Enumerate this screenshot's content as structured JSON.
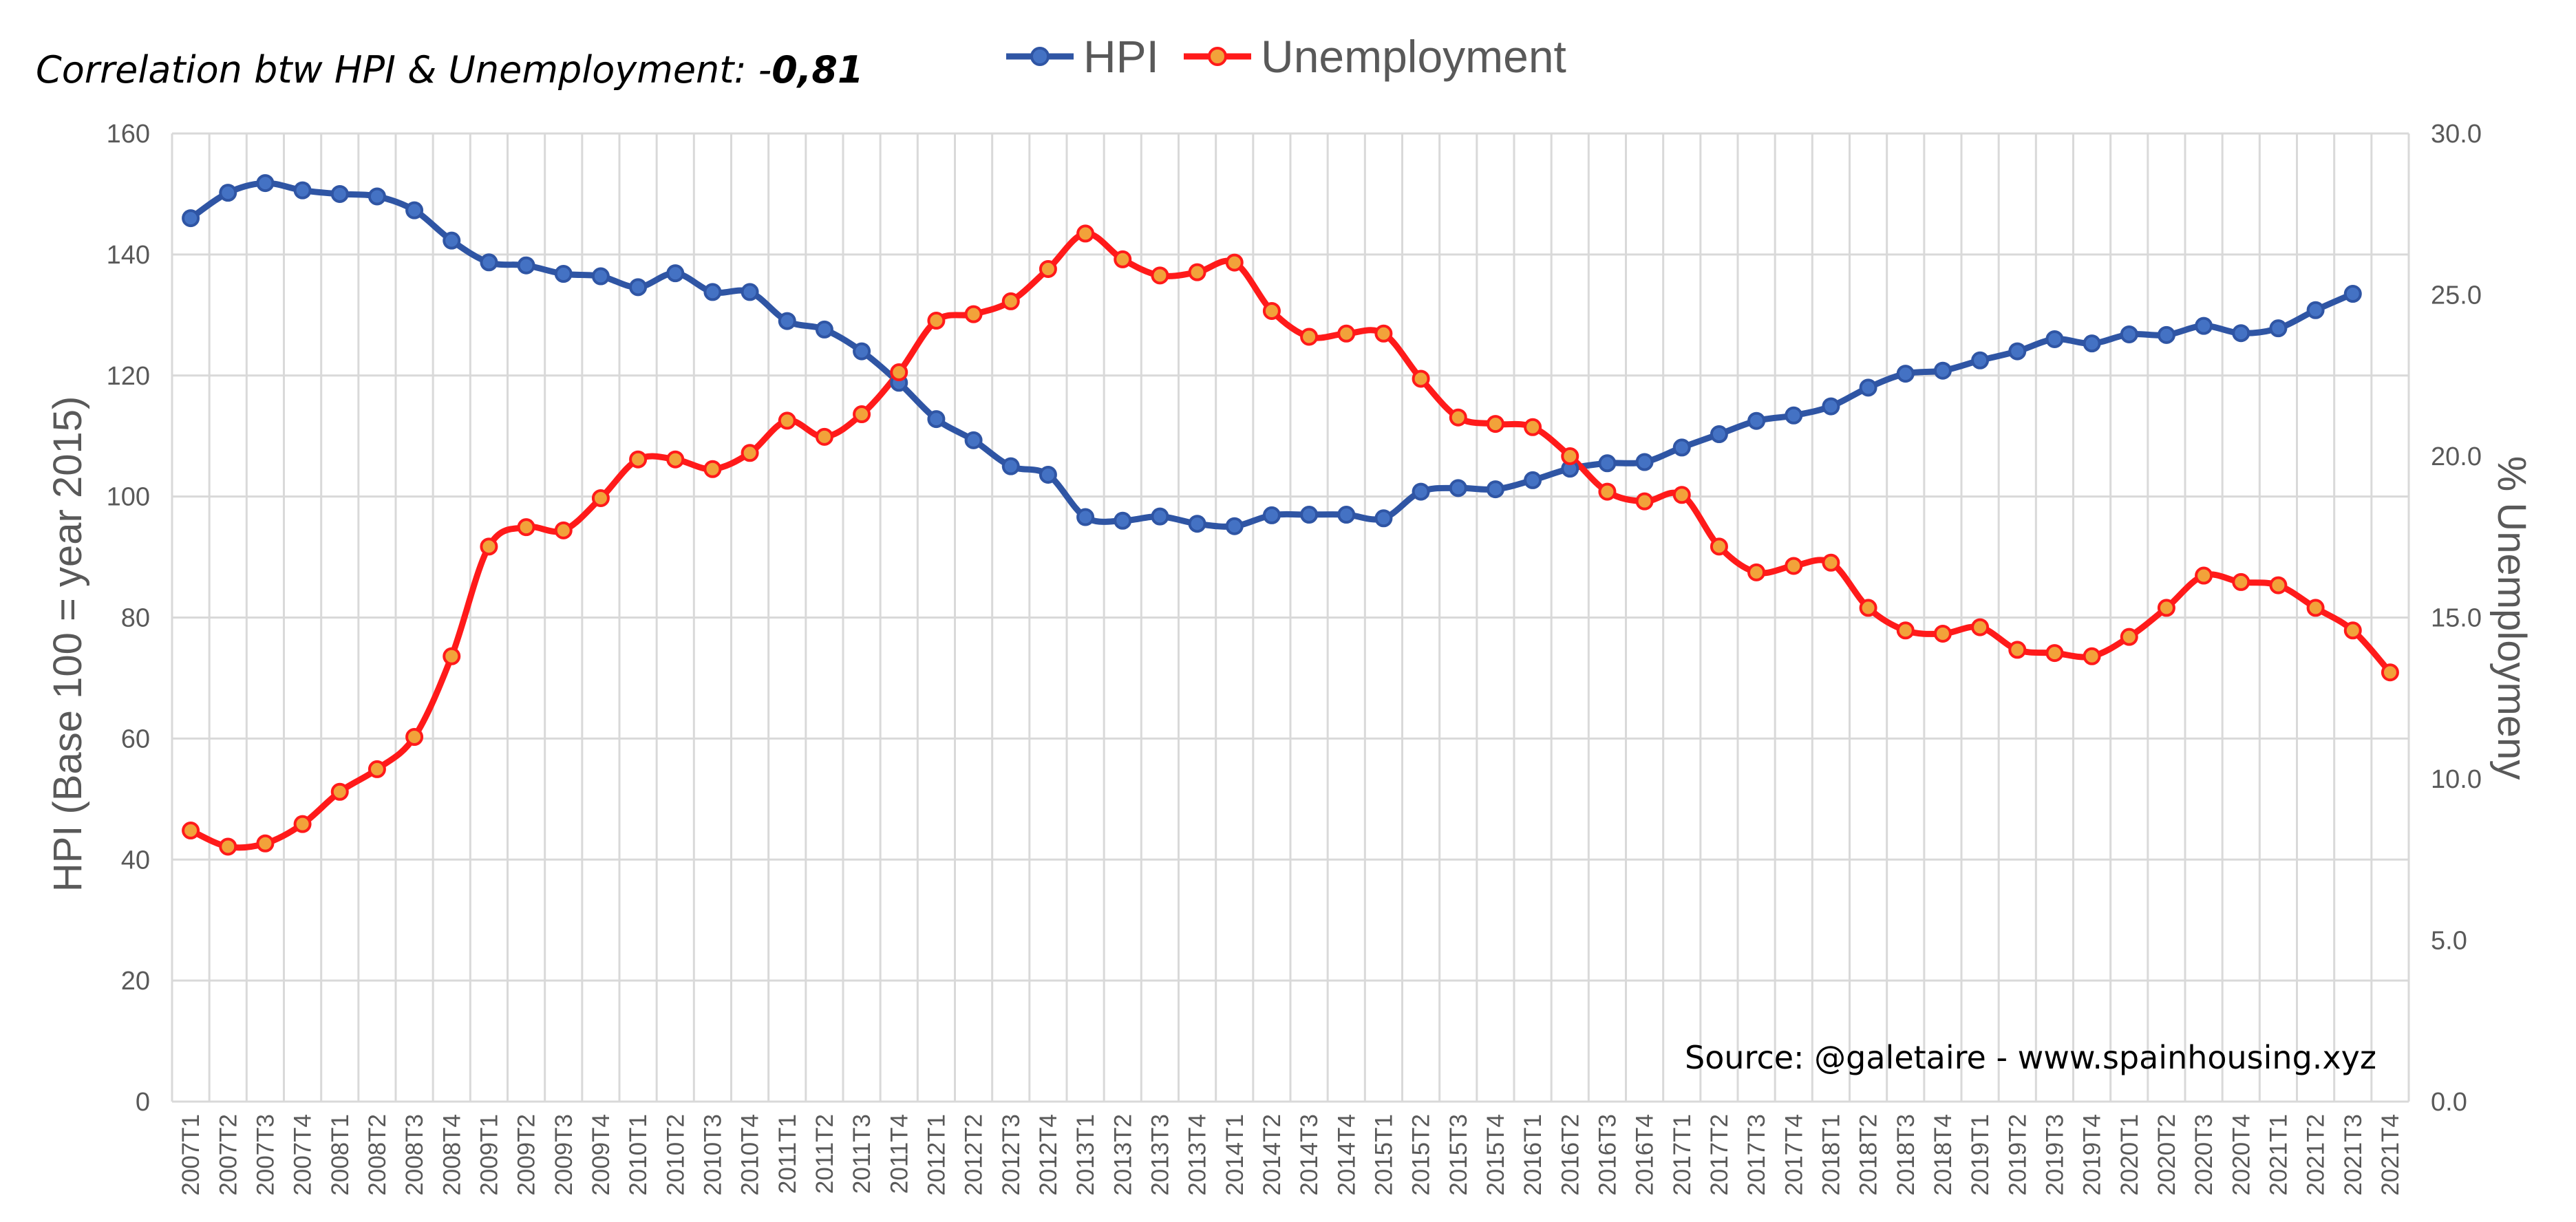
{
  "annotation": {
    "prefix": "Correlation btw HPI & Unemployment: -",
    "value": "0,81"
  },
  "source": "Source: @galetaire - www.spainhousing.xyz",
  "colors": {
    "hpi": "#2F55A4",
    "unemployment": "#FF1A1A",
    "unemployment_marker": "#F2A23A",
    "grid": "#D9D9D9",
    "axis_text": "#595959"
  },
  "chart_data": {
    "type": "line",
    "categories": [
      "2007T1",
      "2007T2",
      "2007T3",
      "2007T4",
      "2008T1",
      "2008T2",
      "2008T3",
      "2008T4",
      "2009T1",
      "2009T2",
      "2009T3",
      "2009T4",
      "2010T1",
      "2010T2",
      "2010T3",
      "2010T4",
      "2011T1",
      "2011T2",
      "2011T3",
      "2011T4",
      "2012T1",
      "2012T2",
      "2012T3",
      "2012T4",
      "2013T1",
      "2013T2",
      "2013T3",
      "2013T4",
      "2014T1",
      "2014T2",
      "2014T3",
      "2014T4",
      "2015T1",
      "2015T2",
      "2015T3",
      "2015T4",
      "2016T1",
      "2016T2",
      "2016T3",
      "2016T4",
      "2017T1",
      "2017T2",
      "2017T3",
      "2017T4",
      "2018T1",
      "2018T2",
      "2018T3",
      "2018T4",
      "2019T1",
      "2019T2",
      "2019T3",
      "2019T4",
      "2020T1",
      "2020T2",
      "2020T3",
      "2020T4",
      "2021T1",
      "2021T2",
      "2021T3",
      "2021T4"
    ],
    "tick_labels": [
      "2007T1",
      "2007T2",
      "2007T3",
      "2007T4",
      "2008T1",
      "2008T2",
      "2008T3",
      "2008T4",
      "2009T1",
      "2009T2",
      "2009T3",
      "2009T4",
      "2010T1",
      "2010T2",
      "2010T3",
      "2010T4",
      "2011T1",
      "2011T2",
      "2011T3",
      "2011T4",
      "2012T1",
      "2012T2",
      "2012T3",
      "2012T4",
      "2013T1",
      "2013T2",
      "2013T3",
      "2013T4",
      "2014T1",
      "2014T2",
      "2014T3",
      "2014T4",
      "2015T1",
      "2015T2",
      "2015T3",
      "2015T4",
      "2016T1",
      "2016T2",
      "2016T3",
      "2016T4",
      "2017T1",
      "2017T2",
      "2017T3",
      "2017T4",
      "2018T1",
      "2018T2",
      "2018T3",
      "2018T4",
      "2019T1",
      "2019T2",
      "2019T3",
      "2019T4",
      "2020T1",
      "2020T2",
      "2020T3",
      "2020T4",
      "2021T1",
      "2021T2",
      "2021T3",
      "2021T4"
    ],
    "series": [
      {
        "name": "HPI",
        "axis": "left",
        "values": [
          146,
          150.2,
          151.8,
          150.6,
          150,
          149.6,
          147.3,
          142.3,
          138.7,
          138.2,
          136.8,
          136.4,
          134.6,
          136.9,
          133.8,
          133.8,
          129,
          127.6,
          124,
          118.8,
          112.8,
          109.3,
          105,
          103.6,
          96.6,
          96,
          96.7,
          95.5,
          95.1,
          96.9,
          97,
          97,
          96.4,
          100.8,
          101.4,
          101.2,
          102.7,
          104.6,
          105.5,
          105.7,
          108.1,
          110.3,
          112.5,
          113.4,
          114.9,
          118,
          120.3,
          120.8,
          122.5,
          124,
          126,
          125.3,
          126.8,
          126.7,
          128.2,
          127,
          127.8,
          130.8,
          133.5,
          null
        ]
      },
      {
        "name": "Unemployment",
        "axis": "right",
        "values": [
          8.4,
          7.9,
          8,
          8.6,
          9.6,
          10.3,
          11.3,
          13.8,
          17.2,
          17.8,
          17.7,
          18.7,
          19.9,
          19.9,
          19.6,
          20.1,
          21.1,
          20.6,
          21.3,
          22.6,
          24.2,
          24.4,
          24.8,
          25.8,
          26.9,
          26.1,
          25.6,
          25.7,
          26,
          24.5,
          23.7,
          23.8,
          23.8,
          22.4,
          21.2,
          21,
          20.9,
          20,
          18.9,
          18.6,
          18.8,
          17.2,
          16.4,
          16.6,
          16.7,
          15.3,
          14.6,
          14.5,
          14.7,
          14,
          13.9,
          13.8,
          14.4,
          15.3,
          16.3,
          16.1,
          16,
          15.3,
          14.6,
          13.3
        ]
      }
    ],
    "y_left": {
      "label": "HPI (Base 100 = year 2015)",
      "ylim": [
        0,
        160
      ],
      "ticks": [
        "0",
        "20",
        "40",
        "60",
        "80",
        "100",
        "120",
        "140",
        "160"
      ]
    },
    "y_right": {
      "label": "% Unemploymeny",
      "ylim": [
        0,
        30
      ],
      "ticks": [
        "0.0",
        "5.0",
        "10.0",
        "15.0",
        "20.0",
        "25.0",
        "30.0"
      ]
    },
    "grid": true,
    "legend": "top-center"
  }
}
